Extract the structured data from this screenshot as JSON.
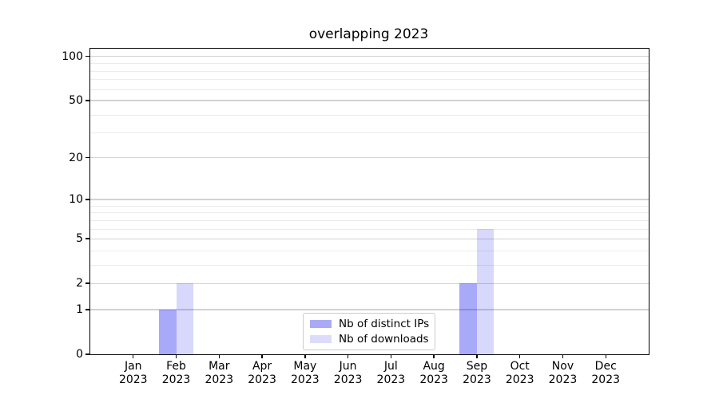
{
  "figure": {
    "title": "overlapping 2023",
    "background": "#ffffff"
  },
  "colors": {
    "spine": "#000000",
    "text": "#000000",
    "grid_major": "#d2d2d2",
    "grid_minor": "#ececec",
    "legend_border": "#cccccc",
    "series_dark_solid": "#a9a9f6",
    "series_light_solid": "#dcdcfa"
  },
  "chart_data": {
    "type": "bar",
    "title": "overlapping 2023",
    "categories": [
      "Jan 2023",
      "Feb 2023",
      "Mar 2023",
      "Apr 2023",
      "May 2023",
      "Jun 2023",
      "Jul 2023",
      "Aug 2023",
      "Sep 2023",
      "Oct 2023",
      "Nov 2023",
      "Dec 2023"
    ],
    "series": [
      {
        "name": "Nb of distinct IPs",
        "fill": "rgba(10,10,240,0.35)",
        "solid": "#a9a9f6",
        "values": [
          0,
          1,
          0,
          0,
          0,
          0,
          0,
          0,
          2,
          0,
          0,
          0
        ]
      },
      {
        "name": "Nb of downloads",
        "fill": "rgba(10,10,240,0.16)",
        "solid": "#dcdcfa",
        "values": [
          0,
          2,
          0,
          0,
          0,
          0,
          0,
          0,
          6,
          0,
          0,
          0
        ]
      }
    ],
    "xlabel": "",
    "ylabel": "",
    "yscale": "log1p",
    "ylim": [
      0,
      113
    ],
    "y_major_ticks": [
      0,
      1,
      2,
      5,
      10,
      20,
      50,
      100
    ],
    "y_minor_ticks": [
      3,
      4,
      6,
      7,
      8,
      9,
      30,
      40,
      60,
      70,
      80,
      90
    ],
    "grid": "horizontal",
    "legend_position": "lower center"
  }
}
